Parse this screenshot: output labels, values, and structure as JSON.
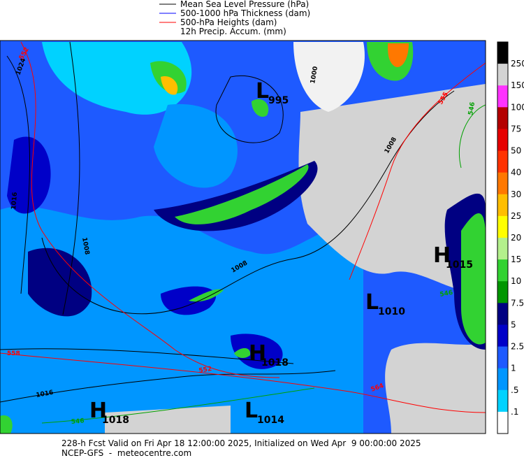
{
  "legend": [
    {
      "label": "Mean Sea Level Pressure (hPa)",
      "color": "#000000"
    },
    {
      "label": "500-1000 hPa Thickness (dam)",
      "color": "#0000ff"
    },
    {
      "label": "500-hPa Heights (dam)",
      "color": "#ff0000"
    },
    {
      "label": "12h Precip. Accum. (mm)",
      "color": null
    }
  ],
  "colorbar": {
    "labels": [
      "250",
      "150",
      "100",
      "75",
      "50",
      "40",
      "30",
      "25",
      "20",
      "15",
      "10",
      "7.5",
      "5",
      "2.5",
      "1",
      ".5",
      ".1"
    ],
    "colors": [
      "#000000",
      "#d3d3d3",
      "#ff33ff",
      "#b40000",
      "#e60000",
      "#ff3200",
      "#ff7800",
      "#ffbe00",
      "#ffff00",
      "#b4f08c",
      "#32d232",
      "#009600",
      "#000082",
      "#0000c8",
      "#1e5aff",
      "#0096ff",
      "#00d2ff",
      "#ffffff"
    ]
  },
  "centers": [
    {
      "letter": "L",
      "value": "995"
    },
    {
      "letter": "H",
      "value": "1015"
    },
    {
      "letter": "L",
      "value": "1010"
    },
    {
      "letter": "H",
      "value": "1018"
    },
    {
      "letter": "H",
      "value": "1018"
    },
    {
      "letter": "L",
      "value": "1014"
    }
  ],
  "isobar_labels": [
    "1024",
    "1016",
    "1008",
    "1008",
    "1000",
    "1008",
    "1016"
  ],
  "height_labels": [
    "552",
    "555",
    "558",
    "552",
    "564"
  ],
  "thickness_labels": [
    "546",
    "546",
    "546"
  ],
  "footer": [
    "228-h Fcst Valid on Fri Apr 18 12:00:00 2025, Initialized on Wed Apr  9 00:00:00 2025",
    "NCEP-GFS  -  meteocentre.com"
  ]
}
